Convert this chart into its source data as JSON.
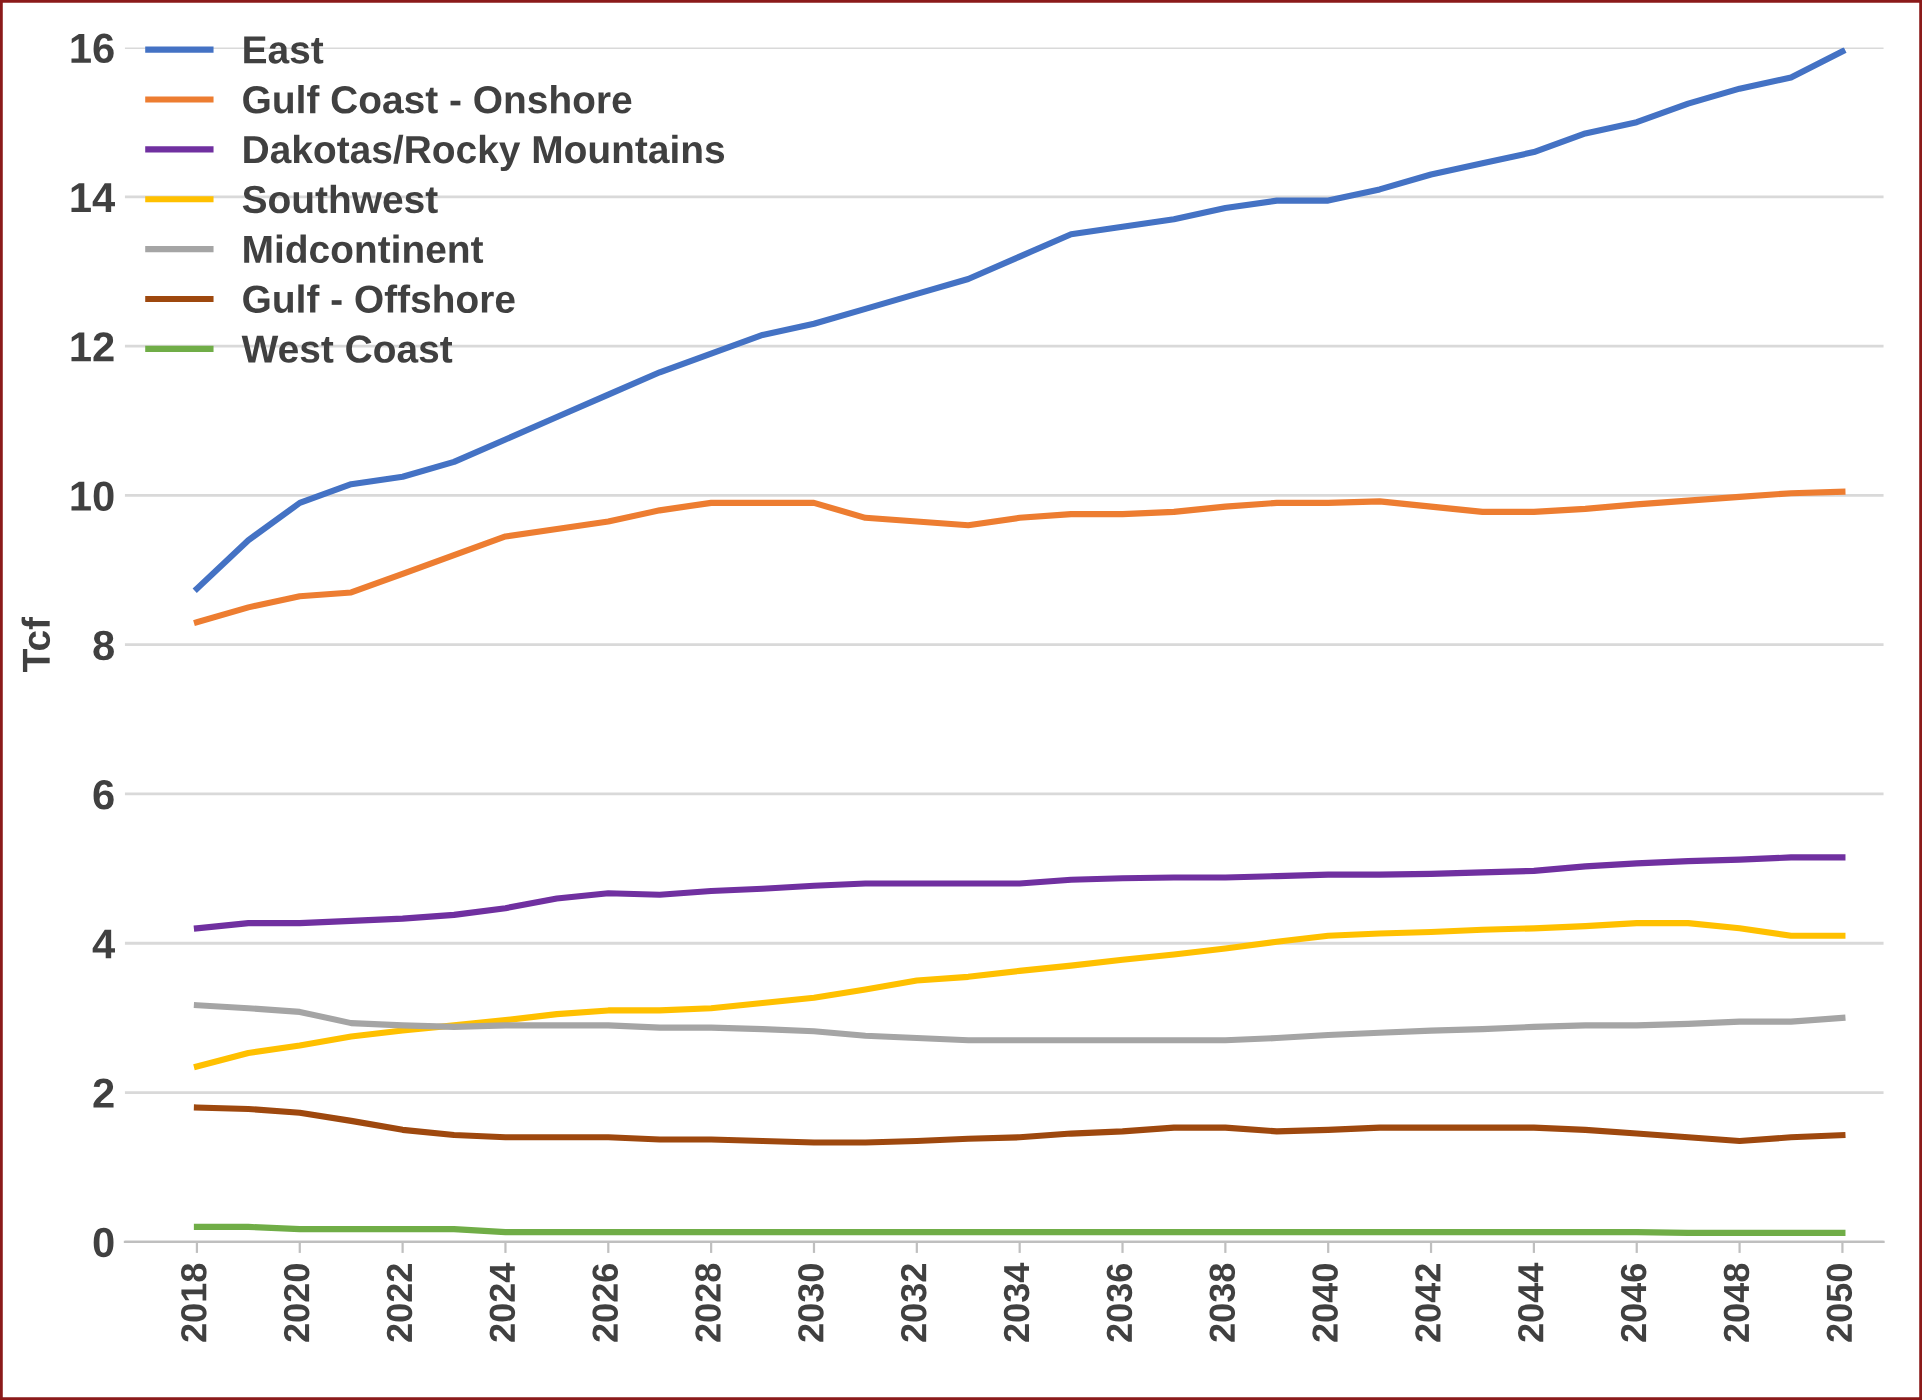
{
  "chart_data": {
    "type": "line",
    "ylabel": "Tcf",
    "x": [
      2018,
      2019,
      2020,
      2021,
      2022,
      2023,
      2024,
      2025,
      2026,
      2027,
      2028,
      2029,
      2030,
      2031,
      2032,
      2033,
      2034,
      2035,
      2036,
      2037,
      2038,
      2039,
      2040,
      2041,
      2042,
      2043,
      2044,
      2045,
      2046,
      2047,
      2048,
      2049,
      2050
    ],
    "xlim": [
      2016.6,
      2050.8
    ],
    "xticks": [
      2018,
      2020,
      2022,
      2024,
      2026,
      2028,
      2030,
      2032,
      2034,
      2036,
      2038,
      2040,
      2042,
      2044,
      2046,
      2048,
      2050
    ],
    "ylim": [
      0,
      16
    ],
    "yticks": [
      0,
      2,
      4,
      6,
      8,
      10,
      12,
      14,
      16
    ],
    "grid": "y",
    "legend": "top left",
    "marker": "none",
    "line_style": "solid",
    "series": [
      {
        "name": "East",
        "color": "#4472c4",
        "values": [
          8.75,
          9.4,
          9.9,
          10.15,
          10.25,
          10.45,
          10.75,
          11.05,
          11.35,
          11.65,
          11.9,
          12.15,
          12.3,
          12.5,
          12.7,
          12.9,
          13.2,
          13.5,
          13.6,
          13.7,
          13.85,
          13.95,
          13.95,
          14.1,
          14.3,
          14.45,
          14.6,
          14.85,
          15.0,
          15.25,
          15.45,
          15.6,
          15.95
        ]
      },
      {
        "name": "Gulf Coast - Onshore",
        "color": "#ed7d31",
        "values": [
          8.3,
          8.5,
          8.65,
          8.7,
          8.95,
          9.2,
          9.45,
          9.55,
          9.65,
          9.8,
          9.9,
          9.9,
          9.9,
          9.7,
          9.65,
          9.6,
          9.7,
          9.75,
          9.75,
          9.78,
          9.85,
          9.9,
          9.9,
          9.92,
          9.85,
          9.78,
          9.78,
          9.82,
          9.88,
          9.93,
          9.98,
          10.03,
          10.05
        ]
      },
      {
        "name": "Dakotas/Rocky Mountains",
        "color": "#7030a0",
        "values": [
          4.2,
          4.27,
          4.27,
          4.3,
          4.33,
          4.38,
          4.47,
          4.6,
          4.67,
          4.65,
          4.7,
          4.73,
          4.77,
          4.8,
          4.8,
          4.8,
          4.8,
          4.85,
          4.87,
          4.88,
          4.88,
          4.9,
          4.92,
          4.92,
          4.93,
          4.95,
          4.97,
          5.03,
          5.07,
          5.1,
          5.12,
          5.15,
          5.15
        ]
      },
      {
        "name": "Southwest",
        "color": "#ffc000",
        "values": [
          2.35,
          2.53,
          2.63,
          2.75,
          2.83,
          2.9,
          2.97,
          3.05,
          3.1,
          3.1,
          3.13,
          3.2,
          3.27,
          3.38,
          3.5,
          3.55,
          3.63,
          3.7,
          3.78,
          3.85,
          3.93,
          4.02,
          4.1,
          4.13,
          4.15,
          4.18,
          4.2,
          4.23,
          4.27,
          4.27,
          4.2,
          4.1,
          4.1
        ]
      },
      {
        "name": "Midcontinent",
        "color": "#a5a5a5",
        "values": [
          3.17,
          3.13,
          3.08,
          2.93,
          2.9,
          2.88,
          2.9,
          2.9,
          2.9,
          2.87,
          2.87,
          2.85,
          2.82,
          2.76,
          2.73,
          2.7,
          2.7,
          2.7,
          2.7,
          2.7,
          2.7,
          2.73,
          2.77,
          2.8,
          2.83,
          2.85,
          2.88,
          2.9,
          2.9,
          2.92,
          2.95,
          2.95,
          3.0
        ]
      },
      {
        "name": "Gulf - Offshore",
        "color": "#9e480e",
        "values": [
          1.8,
          1.78,
          1.73,
          1.62,
          1.5,
          1.43,
          1.4,
          1.4,
          1.4,
          1.37,
          1.37,
          1.35,
          1.33,
          1.33,
          1.35,
          1.38,
          1.4,
          1.45,
          1.48,
          1.53,
          1.53,
          1.48,
          1.5,
          1.53,
          1.53,
          1.53,
          1.53,
          1.5,
          1.45,
          1.4,
          1.35,
          1.4,
          1.43
        ]
      },
      {
        "name": "West Coast",
        "color": "#70ad47",
        "values": [
          0.2,
          0.2,
          0.17,
          0.17,
          0.17,
          0.17,
          0.13,
          0.13,
          0.13,
          0.13,
          0.13,
          0.13,
          0.13,
          0.13,
          0.13,
          0.13,
          0.13,
          0.13,
          0.13,
          0.13,
          0.13,
          0.13,
          0.13,
          0.13,
          0.13,
          0.13,
          0.13,
          0.13,
          0.13,
          0.12,
          0.12,
          0.12,
          0.12
        ]
      }
    ]
  }
}
